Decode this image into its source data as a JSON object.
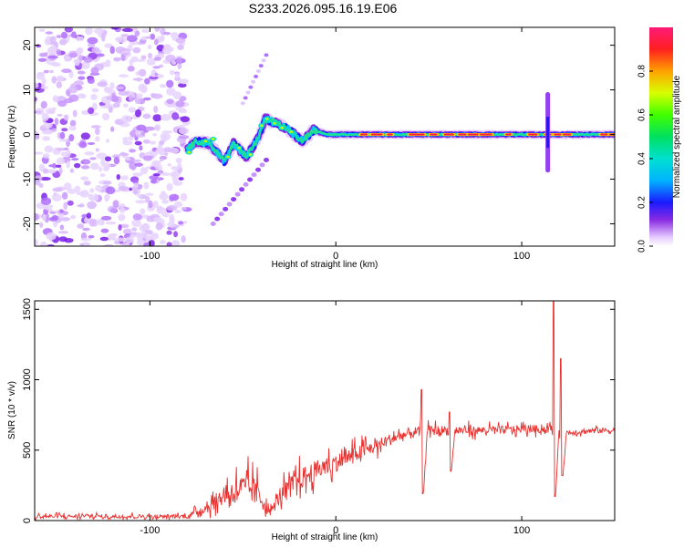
{
  "title": "S233.2026.095.16.19.E06",
  "chart_data": [
    {
      "type": "heatmap",
      "name": "spectrogram",
      "xlabel": "Height of straight line (km)",
      "ylabel": "Frequency (Hz)",
      "xlim": [
        -162,
        150
      ],
      "ylim": [
        -25,
        24
      ],
      "xticks": [
        -100,
        0,
        100
      ],
      "xtick_labels": [
        "-100",
        "0",
        "100"
      ],
      "yticks": [
        -20,
        -10,
        0,
        10,
        20
      ],
      "ytick_labels": [
        "-20",
        "-10",
        "0",
        "10",
        "20"
      ],
      "grid": false,
      "colorbar": {
        "label": "Normalized spectral amplitude",
        "range": [
          0.0,
          1.0
        ],
        "ticks": [
          0.0,
          0.2,
          0.4,
          0.6,
          0.8
        ],
        "tick_labels": [
          "0.0",
          "0.2",
          "0.4",
          "0.6",
          "0.8"
        ]
      },
      "features": {
        "noise_region_x": [
          -162,
          -80
        ],
        "signal_line_start_x": -80,
        "signal_line_end_x": 150,
        "signal_line_freq_hz": 0,
        "spike_x": 114,
        "spike_freq_range": [
          -8,
          9
        ],
        "trace_points": [
          [
            -82,
            -4
          ],
          [
            -75,
            -1.5
          ],
          [
            -68,
            -2
          ],
          [
            -60,
            -6
          ],
          [
            -55,
            -2
          ],
          [
            -48,
            -5
          ],
          [
            -42,
            -1
          ],
          [
            -38,
            3.5
          ],
          [
            -32,
            2.5
          ],
          [
            -25,
            1
          ],
          [
            -18,
            -1.5
          ],
          [
            -12,
            1
          ],
          [
            -5,
            0
          ],
          [
            0,
            0
          ],
          [
            50,
            0
          ],
          [
            100,
            0
          ],
          [
            150,
            0
          ]
        ]
      }
    },
    {
      "type": "line",
      "name": "snr",
      "xlabel": "Height of straight line (km)",
      "ylabel": "SNR (10 * v/v)",
      "xlim": [
        -162,
        150
      ],
      "ylim": [
        0,
        1560
      ],
      "xticks": [
        -100,
        0,
        100
      ],
      "xtick_labels": [
        "-100",
        "0",
        "100"
      ],
      "yticks": [
        0,
        500,
        1000,
        1500
      ],
      "ytick_labels": [
        "0",
        "500",
        "1000",
        "1500"
      ],
      "grid": false,
      "color": "#e8302e",
      "envelope": {
        "x": [
          -162,
          -80,
          -70,
          -60,
          -52,
          -46,
          -40,
          -35,
          -30,
          -20,
          -10,
          0,
          10,
          20,
          30,
          40,
          50,
          60,
          70,
          80,
          100,
          110,
          115,
          120,
          130,
          140,
          150
        ],
        "y": [
          30,
          30,
          90,
          180,
          230,
          230,
          160,
          60,
          180,
          290,
          360,
          410,
          470,
          520,
          580,
          620,
          640,
          640,
          640,
          640,
          650,
          650,
          650,
          620,
          630,
          640,
          640
        ],
        "amp": [
          20,
          20,
          50,
          100,
          130,
          150,
          120,
          40,
          90,
          110,
          100,
          90,
          80,
          70,
          60,
          60,
          50,
          50,
          45,
          40,
          40,
          40,
          40,
          30,
          30,
          30,
          30
        ]
      },
      "spikes": [
        {
          "x": 46,
          "peak": 930,
          "low": 190
        },
        {
          "x": 61,
          "peak": 770,
          "low": 350
        },
        {
          "x": 117,
          "peak": 1560,
          "low": 170
        },
        {
          "x": 121,
          "peak": 1150,
          "low": 320
        }
      ]
    }
  ]
}
